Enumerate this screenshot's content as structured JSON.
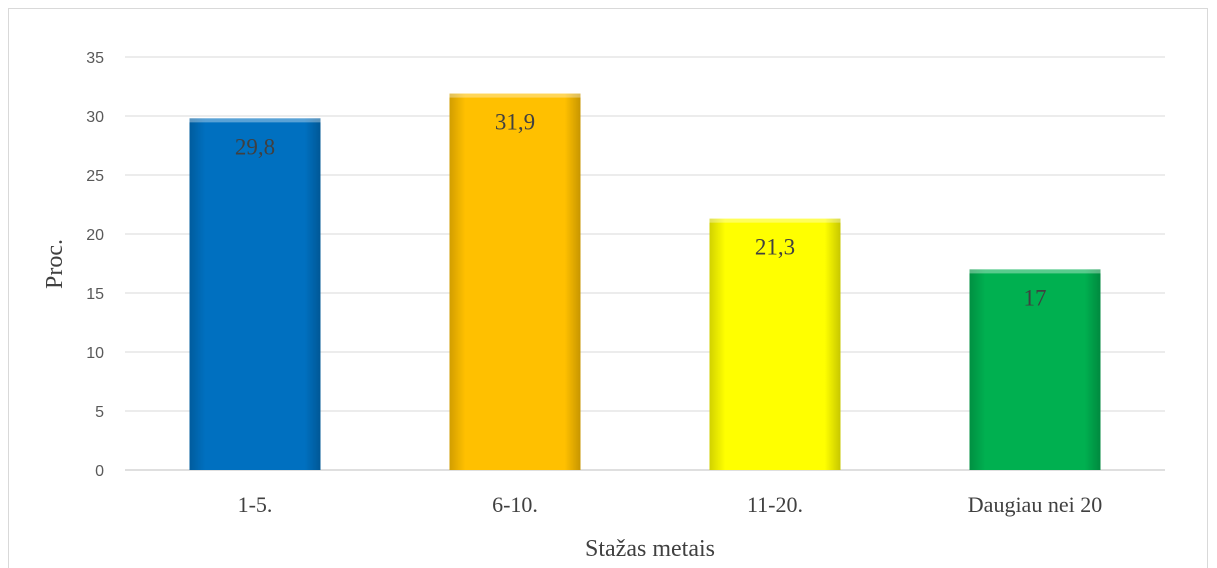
{
  "chart_data": {
    "type": "bar",
    "categories": [
      "1-5.",
      "6-10.",
      "11-20.",
      "Daugiau nei 20"
    ],
    "values": [
      29.8,
      31.9,
      21.3,
      17
    ],
    "value_labels": [
      "29,8",
      "31,9",
      "21,3",
      "17"
    ],
    "title": "",
    "xlabel": "Stažas metais",
    "ylabel": "Proc.",
    "ylim": [
      0,
      35
    ],
    "yticks": [
      0,
      5,
      10,
      15,
      20,
      25,
      30,
      35
    ],
    "grid": true,
    "legend": "none",
    "colors": [
      "#0070C0",
      "#FFC000",
      "#FFFF00",
      "#00B050"
    ]
  }
}
